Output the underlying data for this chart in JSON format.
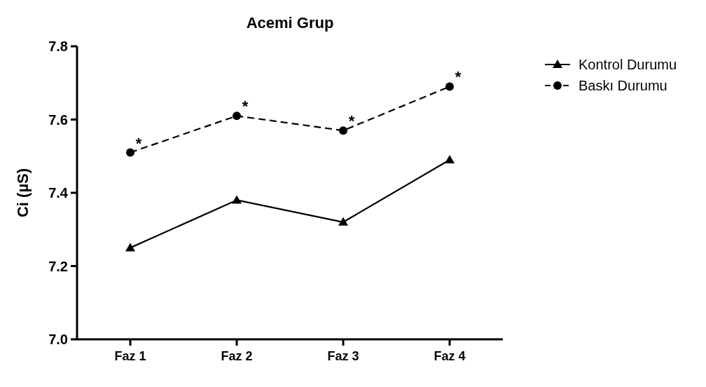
{
  "chart_data": {
    "type": "line",
    "title": "Acemi Grup",
    "ylabel": "Ci (µS)",
    "categories": [
      "Faz 1",
      "Faz 2",
      "Faz 3",
      "Faz 4"
    ],
    "series": [
      {
        "name": "Kontrol Durumu",
        "color": "#000000",
        "marker": "triangle",
        "line_style": "solid",
        "values": [
          7.25,
          7.38,
          7.32,
          7.49
        ]
      },
      {
        "name": "Baskı Durumu",
        "color": "#000000",
        "marker": "circle",
        "line_style": "dashed",
        "values": [
          7.51,
          7.61,
          7.57,
          7.69
        ]
      }
    ],
    "ylim": [
      7.0,
      7.8
    ],
    "yticks": [
      {
        "value": 7.0,
        "label": "7.0"
      },
      {
        "value": 7.2,
        "label": "7.2"
      },
      {
        "value": 7.4,
        "label": "7.4"
      },
      {
        "value": 7.6,
        "label": "7.6"
      },
      {
        "value": 7.8,
        "label": "7.8"
      }
    ],
    "grid": false,
    "legend": "top right",
    "annotations": [
      {
        "text": "*",
        "x": "Faz 1",
        "y": 7.51
      },
      {
        "text": "*",
        "x": "Faz 2",
        "y": 7.61
      },
      {
        "text": "*",
        "x": "Faz 3",
        "y": 7.57
      },
      {
        "text": "*",
        "x": "Faz 4",
        "y": 7.69
      }
    ]
  }
}
